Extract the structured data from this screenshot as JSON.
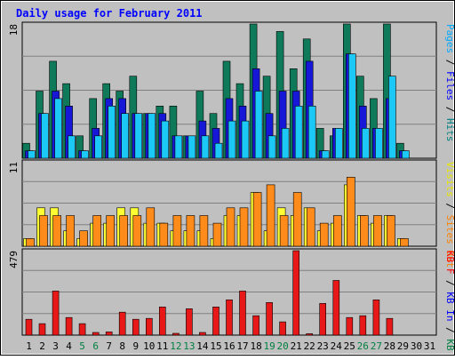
{
  "chart_data": {
    "type": "bar",
    "title": "Daily usage for February 2011",
    "x": [
      "1",
      "2",
      "3",
      "4",
      "5",
      "6",
      "7",
      "8",
      "9",
      "10",
      "11",
      "12",
      "13",
      "14",
      "15",
      "16",
      "17",
      "18",
      "19",
      "20",
      "21",
      "22",
      "23",
      "24",
      "25",
      "26",
      "27",
      "28",
      "29",
      "30",
      "31"
    ],
    "weekend_days": [
      "5",
      "6",
      "12",
      "13",
      "19",
      "20",
      "26",
      "27"
    ],
    "panels": [
      {
        "ymax_label": "18",
        "ymax": 18,
        "right_labels": [
          {
            "text": "Pages",
            "color": "#00aaff"
          },
          {
            "text": " / ",
            "color": "#000000"
          },
          {
            "text": "Files",
            "color": "#0000ff"
          },
          {
            "text": " / ",
            "color": "#000000"
          },
          {
            "text": "Hits",
            "color": "#008080"
          }
        ],
        "series": [
          {
            "name": "Hits",
            "color": "#0f7a5a",
            "values": [
              2,
              9,
              13,
              10,
              3,
              8,
              10,
              9,
              11,
              6,
              7,
              7,
              3,
              9,
              6,
              13,
              10,
              18,
              11,
              17,
              12,
              16,
              4,
              3,
              18,
              11,
              8,
              18,
              2,
              0,
              0
            ]
          },
          {
            "name": "Files",
            "color": "#1717d8",
            "values": [
              1,
              6,
              9,
              7,
              1,
              4,
              8,
              8,
              6,
              6,
              6,
              3,
              3,
              5,
              4,
              8,
              7,
              12,
              6,
              9,
              9,
              13,
              1,
              4,
              14,
              7,
              4,
              8,
              1,
              0,
              0
            ]
          },
          {
            "name": "Pages",
            "color": "#1cc8f5",
            "values": [
              1,
              6,
              8,
              3,
              1,
              3,
              7,
              6,
              6,
              6,
              5,
              3,
              3,
              3,
              2,
              5,
              5,
              9,
              3,
              4,
              7,
              7,
              1,
              4,
              14,
              4,
              4,
              11,
              1,
              0,
              0
            ]
          }
        ]
      },
      {
        "ymax_label": "11",
        "ymax": 11,
        "right_labels": [
          {
            "text": "Visits",
            "color": "#e8e800"
          },
          {
            "text": " / ",
            "color": "#000000"
          },
          {
            "text": "Sites",
            "color": "#ff8000"
          },
          {
            "text": " Out",
            "color": "#ff8000"
          }
        ],
        "series": [
          {
            "name": "Visits",
            "color": "#ffff33",
            "values": [
              1,
              5,
              5,
              2,
              1,
              3,
              3,
              5,
              5,
              3,
              3,
              2,
              2,
              2,
              1,
              4,
              4,
              7,
              2,
              5,
              4,
              5,
              2,
              3,
              8,
              4,
              3,
              4,
              1,
              0,
              0
            ]
          },
          {
            "name": "Sites",
            "color": "#ff8c1a",
            "values": [
              1,
              4,
              4,
              4,
              2,
              4,
              4,
              4,
              4,
              5,
              3,
              4,
              4,
              4,
              3,
              5,
              5,
              7,
              8,
              4,
              7,
              5,
              3,
              4,
              9,
              4,
              4,
              4,
              1,
              0,
              0
            ]
          }
        ]
      },
      {
        "ymax_label": "479",
        "ymax": 479,
        "right_labels": [
          {
            "text": "KB F",
            "color": "#ff0000"
          },
          {
            "text": " / ",
            "color": "#000000"
          },
          {
            "text": "KB In",
            "color": "#0000ff"
          },
          {
            "text": " / ",
            "color": "#000000"
          },
          {
            "text": "KB Out",
            "color": "#008040"
          }
        ],
        "series": [
          {
            "name": "KB F",
            "color": "#e81818",
            "values": [
              90,
              65,
              250,
              100,
              65,
              15,
              18,
              130,
              90,
              95,
              160,
              10,
              150,
              15,
              160,
              200,
              250,
              110,
              185,
              75,
              479,
              8,
              180,
              310,
              100,
              110,
              200,
              95,
              0,
              0,
              0
            ]
          }
        ]
      }
    ]
  }
}
